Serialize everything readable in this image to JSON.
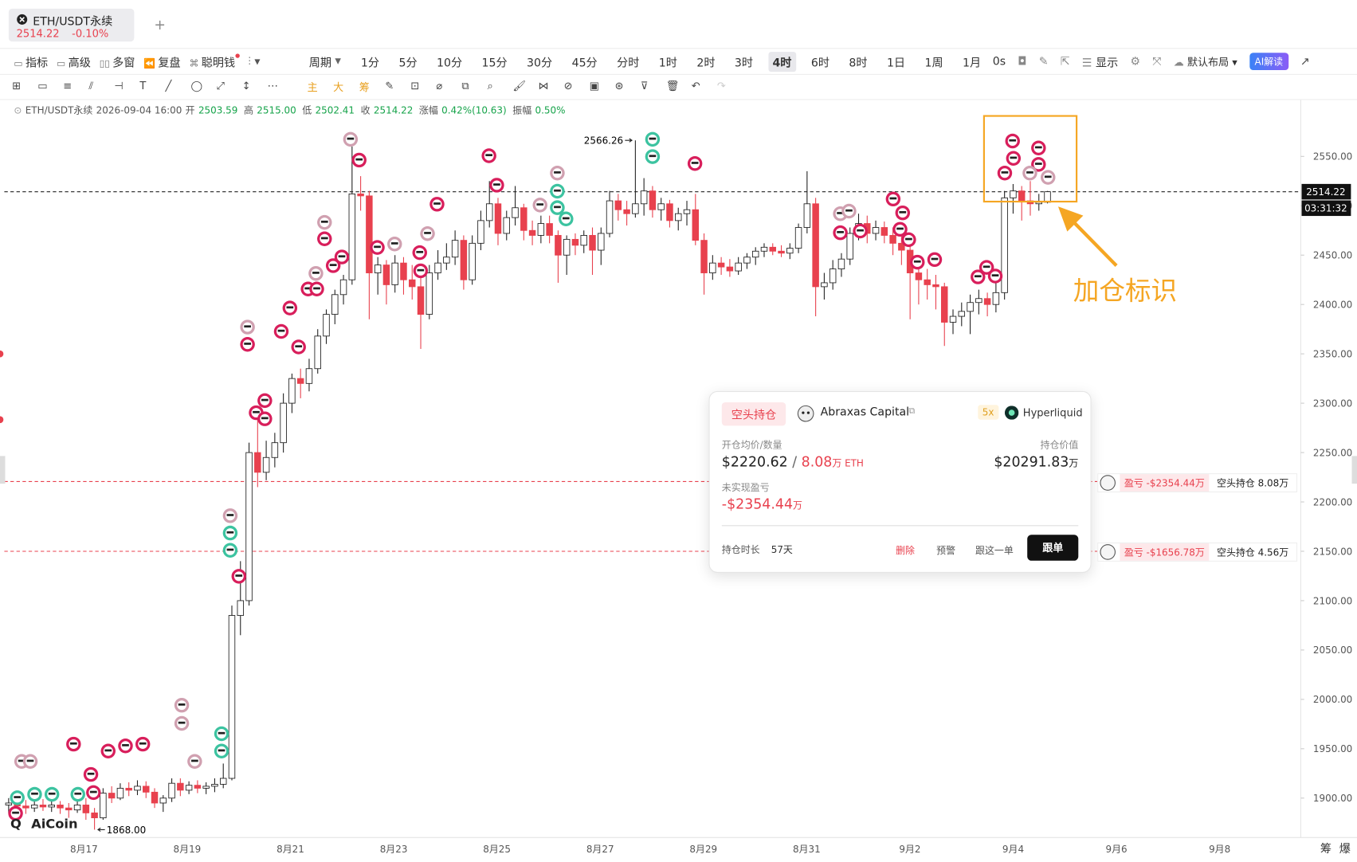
{
  "tab": {
    "symbol": "ETH/USDT永续",
    "price": "2514.22",
    "change": "-0.10%"
  },
  "toolbar": {
    "items": [
      "指标",
      "高级",
      "多窗",
      "复盘",
      "聪明钱"
    ],
    "period": "周期",
    "intervals": [
      {
        "label": "1分"
      },
      {
        "label": "5分"
      },
      {
        "label": "10分"
      },
      {
        "label": "15分"
      },
      {
        "label": "30分"
      },
      {
        "label": "45分"
      },
      {
        "label": "分时"
      },
      {
        "label": "1时"
      },
      {
        "label": "2时"
      },
      {
        "label": "3时"
      },
      {
        "label": "4时",
        "active": true
      },
      {
        "label": "6时"
      },
      {
        "label": "8时"
      },
      {
        "label": "1日"
      },
      {
        "label": "1周"
      },
      {
        "label": "1月"
      }
    ],
    "countdown": "0s",
    "display": "显示",
    "layout": "默认布局",
    "ai": "AI解读"
  },
  "draw_tools": [
    "主",
    "大",
    "筹"
  ],
  "chart_data": {
    "type": "candlestick",
    "info": {
      "symbol": "ETH/USDT永续",
      "time": "2026-09-04 16:00",
      "fields": [
        {
          "name": "开",
          "value": "2503.59"
        },
        {
          "name": "高",
          "value": "2515.00"
        },
        {
          "name": "低",
          "value": "2502.41"
        },
        {
          "name": "收",
          "value": "2514.22"
        },
        {
          "name": "涨幅",
          "value": "0.42%(10.63)"
        },
        {
          "name": "振幅",
          "value": "0.50%"
        }
      ]
    },
    "up_color": "#ffffff",
    "down_color": "#e8414e",
    "candles": [
      [
        1893,
        1900,
        1885,
        1895
      ],
      [
        1895,
        1902,
        1888,
        1892
      ],
      [
        1892,
        1898,
        1884,
        1890
      ],
      [
        1890,
        1897,
        1886,
        1893
      ],
      [
        1893,
        1899,
        1887,
        1891
      ],
      [
        1891,
        1898,
        1886,
        1893
      ],
      [
        1893,
        1897,
        1884,
        1890
      ],
      [
        1890,
        1895,
        1880,
        1888
      ],
      [
        1888,
        1898,
        1885,
        1893
      ],
      [
        1893,
        1900,
        1878,
        1885
      ],
      [
        1885,
        1890,
        1868,
        1880
      ],
      [
        1880,
        1910,
        1878,
        1905
      ],
      [
        1905,
        1912,
        1895,
        1900
      ],
      [
        1900,
        1915,
        1898,
        1910
      ],
      [
        1910,
        1916,
        1902,
        1908
      ],
      [
        1908,
        1918,
        1903,
        1912
      ],
      [
        1912,
        1917,
        1900,
        1906
      ],
      [
        1906,
        1910,
        1890,
        1895
      ],
      [
        1895,
        1903,
        1886,
        1900
      ],
      [
        1900,
        1920,
        1896,
        1915
      ],
      [
        1915,
        1920,
        1902,
        1908
      ],
      [
        1908,
        1917,
        1904,
        1913
      ],
      [
        1913,
        1918,
        1905,
        1910
      ],
      [
        1910,
        1916,
        1904,
        1912
      ],
      [
        1912,
        1920,
        1906,
        1914
      ],
      [
        1914,
        1935,
        1910,
        1920
      ],
      [
        1920,
        2095,
        1918,
        2085
      ],
      [
        2085,
        2140,
        2065,
        2100
      ],
      [
        2100,
        2260,
        2095,
        2250
      ],
      [
        2250,
        2290,
        2215,
        2230
      ],
      [
        2230,
        2262,
        2222,
        2245
      ],
      [
        2245,
        2270,
        2235,
        2260
      ],
      [
        2260,
        2310,
        2250,
        2300
      ],
      [
        2300,
        2330,
        2290,
        2325
      ],
      [
        2325,
        2335,
        2305,
        2320
      ],
      [
        2320,
        2345,
        2312,
        2335
      ],
      [
        2335,
        2375,
        2330,
        2368
      ],
      [
        2368,
        2395,
        2360,
        2390
      ],
      [
        2390,
        2415,
        2380,
        2410
      ],
      [
        2410,
        2430,
        2400,
        2425
      ],
      [
        2425,
        2560,
        2420,
        2512
      ],
      [
        2512,
        2530,
        2495,
        2510
      ],
      [
        2510,
        2515,
        2385,
        2432
      ],
      [
        2432,
        2448,
        2410,
        2440
      ],
      [
        2440,
        2445,
        2400,
        2420
      ],
      [
        2420,
        2450,
        2412,
        2442
      ],
      [
        2442,
        2448,
        2410,
        2425
      ],
      [
        2425,
        2440,
        2405,
        2418
      ],
      [
        2418,
        2428,
        2355,
        2390
      ],
      [
        2390,
        2440,
        2385,
        2432
      ],
      [
        2432,
        2455,
        2425,
        2442
      ],
      [
        2442,
        2462,
        2435,
        2448
      ],
      [
        2448,
        2475,
        2440,
        2465
      ],
      [
        2465,
        2470,
        2415,
        2425
      ],
      [
        2425,
        2470,
        2420,
        2462
      ],
      [
        2462,
        2495,
        2455,
        2485
      ],
      [
        2485,
        2525,
        2478,
        2502
      ],
      [
        2502,
        2508,
        2460,
        2472
      ],
      [
        2472,
        2495,
        2465,
        2488
      ],
      [
        2488,
        2520,
        2480,
        2498
      ],
      [
        2498,
        2502,
        2465,
        2475
      ],
      [
        2475,
        2485,
        2460,
        2470
      ],
      [
        2470,
        2490,
        2462,
        2482
      ],
      [
        2482,
        2490,
        2462,
        2470
      ],
      [
        2470,
        2475,
        2422,
        2450
      ],
      [
        2450,
        2470,
        2430,
        2466
      ],
      [
        2466,
        2472,
        2450,
        2460
      ],
      [
        2460,
        2475,
        2452,
        2470
      ],
      [
        2470,
        2478,
        2430,
        2455
      ],
      [
        2455,
        2478,
        2440,
        2472
      ],
      [
        2472,
        2515,
        2468,
        2505
      ],
      [
        2505,
        2512,
        2485,
        2496
      ],
      [
        2496,
        2505,
        2480,
        2492
      ],
      [
        2492,
        2566.26,
        2488,
        2502
      ],
      [
        2502,
        2528,
        2490,
        2515
      ],
      [
        2515,
        2520,
        2488,
        2496
      ],
      [
        2496,
        2508,
        2485,
        2502
      ],
      [
        2502,
        2506,
        2478,
        2485
      ],
      [
        2485,
        2498,
        2475,
        2492
      ],
      [
        2492,
        2505,
        2480,
        2496
      ],
      [
        2496,
        2512,
        2460,
        2465
      ],
      [
        2465,
        2472,
        2410,
        2432
      ],
      [
        2432,
        2450,
        2425,
        2442
      ],
      [
        2442,
        2448,
        2430,
        2438
      ],
      [
        2438,
        2446,
        2428,
        2434
      ],
      [
        2434,
        2448,
        2430,
        2442
      ],
      [
        2442,
        2452,
        2436,
        2448
      ],
      [
        2448,
        2458,
        2440,
        2454
      ],
      [
        2454,
        2462,
        2448,
        2458
      ],
      [
        2458,
        2462,
        2450,
        2454
      ],
      [
        2454,
        2460,
        2448,
        2452
      ],
      [
        2452,
        2462,
        2446,
        2457
      ],
      [
        2457,
        2482,
        2452,
        2478
      ],
      [
        2478,
        2535,
        2472,
        2502
      ],
      [
        2502,
        2508,
        2388,
        2418
      ],
      [
        2418,
        2432,
        2405,
        2422
      ],
      [
        2422,
        2445,
        2415,
        2436
      ],
      [
        2436,
        2452,
        2428,
        2446
      ],
      [
        2446,
        2478,
        2440,
        2472
      ],
      [
        2472,
        2492,
        2465,
        2482
      ],
      [
        2482,
        2490,
        2462,
        2472
      ],
      [
        2472,
        2485,
        2465,
        2478
      ],
      [
        2478,
        2484,
        2462,
        2470
      ],
      [
        2470,
        2478,
        2450,
        2462
      ],
      [
        2462,
        2470,
        2440,
        2455
      ],
      [
        2455,
        2462,
        2385,
        2432
      ],
      [
        2432,
        2440,
        2400,
        2425
      ],
      [
        2425,
        2436,
        2405,
        2420
      ],
      [
        2420,
        2430,
        2395,
        2418
      ],
      [
        2418,
        2422,
        2358,
        2382
      ],
      [
        2382,
        2395,
        2370,
        2388
      ],
      [
        2388,
        2402,
        2378,
        2393
      ],
      [
        2393,
        2410,
        2370,
        2402
      ],
      [
        2402,
        2415,
        2390,
        2406
      ],
      [
        2406,
        2412,
        2388,
        2400
      ],
      [
        2400,
        2425,
        2392,
        2412
      ],
      [
        2412,
        2515,
        2405,
        2508
      ],
      [
        2508,
        2522,
        2492,
        2515
      ],
      [
        2515,
        2520,
        2485,
        2505
      ],
      [
        2505,
        2525,
        2490,
        2502
      ],
      [
        2502,
        2512,
        2495,
        2503.59
      ],
      [
        2503.59,
        2515,
        2502.41,
        2514.22
      ]
    ],
    "ylim": [
      1860,
      2605
    ],
    "yticks": [
      {
        "value": 1900,
        "label": "1900.00"
      },
      {
        "value": 1950,
        "label": "1950.00"
      },
      {
        "value": 2000,
        "label": "2000.00"
      },
      {
        "value": 2050,
        "label": "2050.00"
      },
      {
        "value": 2100,
        "label": "2100.00"
      },
      {
        "value": 2150,
        "label": "2150.00"
      },
      {
        "value": 2200,
        "label": "2200.00"
      },
      {
        "value": 2250,
        "label": "2250.00"
      },
      {
        "value": 2300,
        "label": "2300.00"
      },
      {
        "value": 2350,
        "label": "2350.00"
      },
      {
        "value": 2400,
        "label": "2400.00"
      },
      {
        "value": 2450,
        "label": "2450.00"
      },
      {
        "value": 2500,
        "label": "2500.00"
      },
      {
        "value": 2550,
        "label": "2550.00"
      }
    ],
    "x_labels": [
      "8月17",
      "8月19",
      "8月21",
      "8月23",
      "8月25",
      "8月27",
      "8月29",
      "8月31",
      "9月2",
      "9月4",
      "9月6",
      "9月8"
    ],
    "last_price": {
      "value": 2514.22,
      "label": "2514.22"
    },
    "countdown": "03:31:32",
    "high_marker": {
      "value": 2566.26,
      "label": "2566.26"
    },
    "low_marker": {
      "value": 1868,
      "label": "1868.00"
    },
    "positions": [
      {
        "entry": 2220.62,
        "pnl": "盈亏 -$2354.44万",
        "size": "空头持仓 8.08万"
      },
      {
        "entry": 2150,
        "pnl": "盈亏 -$1656.78万",
        "size": "空头持仓 4.56万"
      }
    ],
    "annotation": "加仓标识",
    "watermark": "AiCoin",
    "side_tabs": [
      "筹",
      "爆"
    ]
  },
  "popup": {
    "side": "空头持仓",
    "trader": "Abraxas Capital",
    "leverage": "5x",
    "exchange": "Hyperliquid",
    "avg_label": "开仓均价/数量",
    "avg_price": "$2220.62",
    "separator": "/",
    "qty": "8.08",
    "qty_unit": "万 ETH",
    "value_label": "持仓价值",
    "value": "$20291.83",
    "value_unit": "万",
    "pnl_label": "未实现盈亏",
    "pnl": "-$2354.44",
    "pnl_unit": "万",
    "duration_label": "持仓时长",
    "duration": "57天",
    "actions": [
      "删除",
      "预警",
      "跟这一单"
    ],
    "follow": "跟单"
  }
}
